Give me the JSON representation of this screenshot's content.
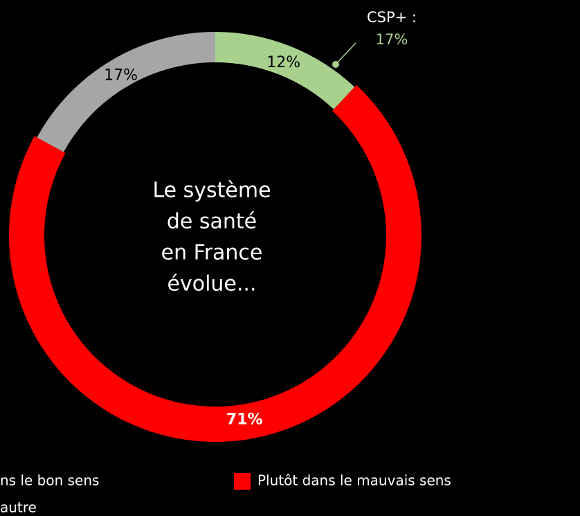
{
  "chart_data": {
    "type": "donut",
    "center_text": [
      "Le système",
      "de santé",
      "en France",
      "évolue..."
    ],
    "categories": [
      "ns le bon sens",
      "Plutôt dans le mauvais sens",
      "autre"
    ],
    "values": [
      12,
      71,
      17
    ],
    "value_labels": [
      "12%",
      "71%",
      "17%"
    ],
    "colors": [
      "#a9d18e",
      "#ff0000",
      "#a6a6a6"
    ],
    "annotation": {
      "label": "CSP+ :",
      "value": 17,
      "value_label": "17%",
      "color": "#a9d18e"
    }
  }
}
